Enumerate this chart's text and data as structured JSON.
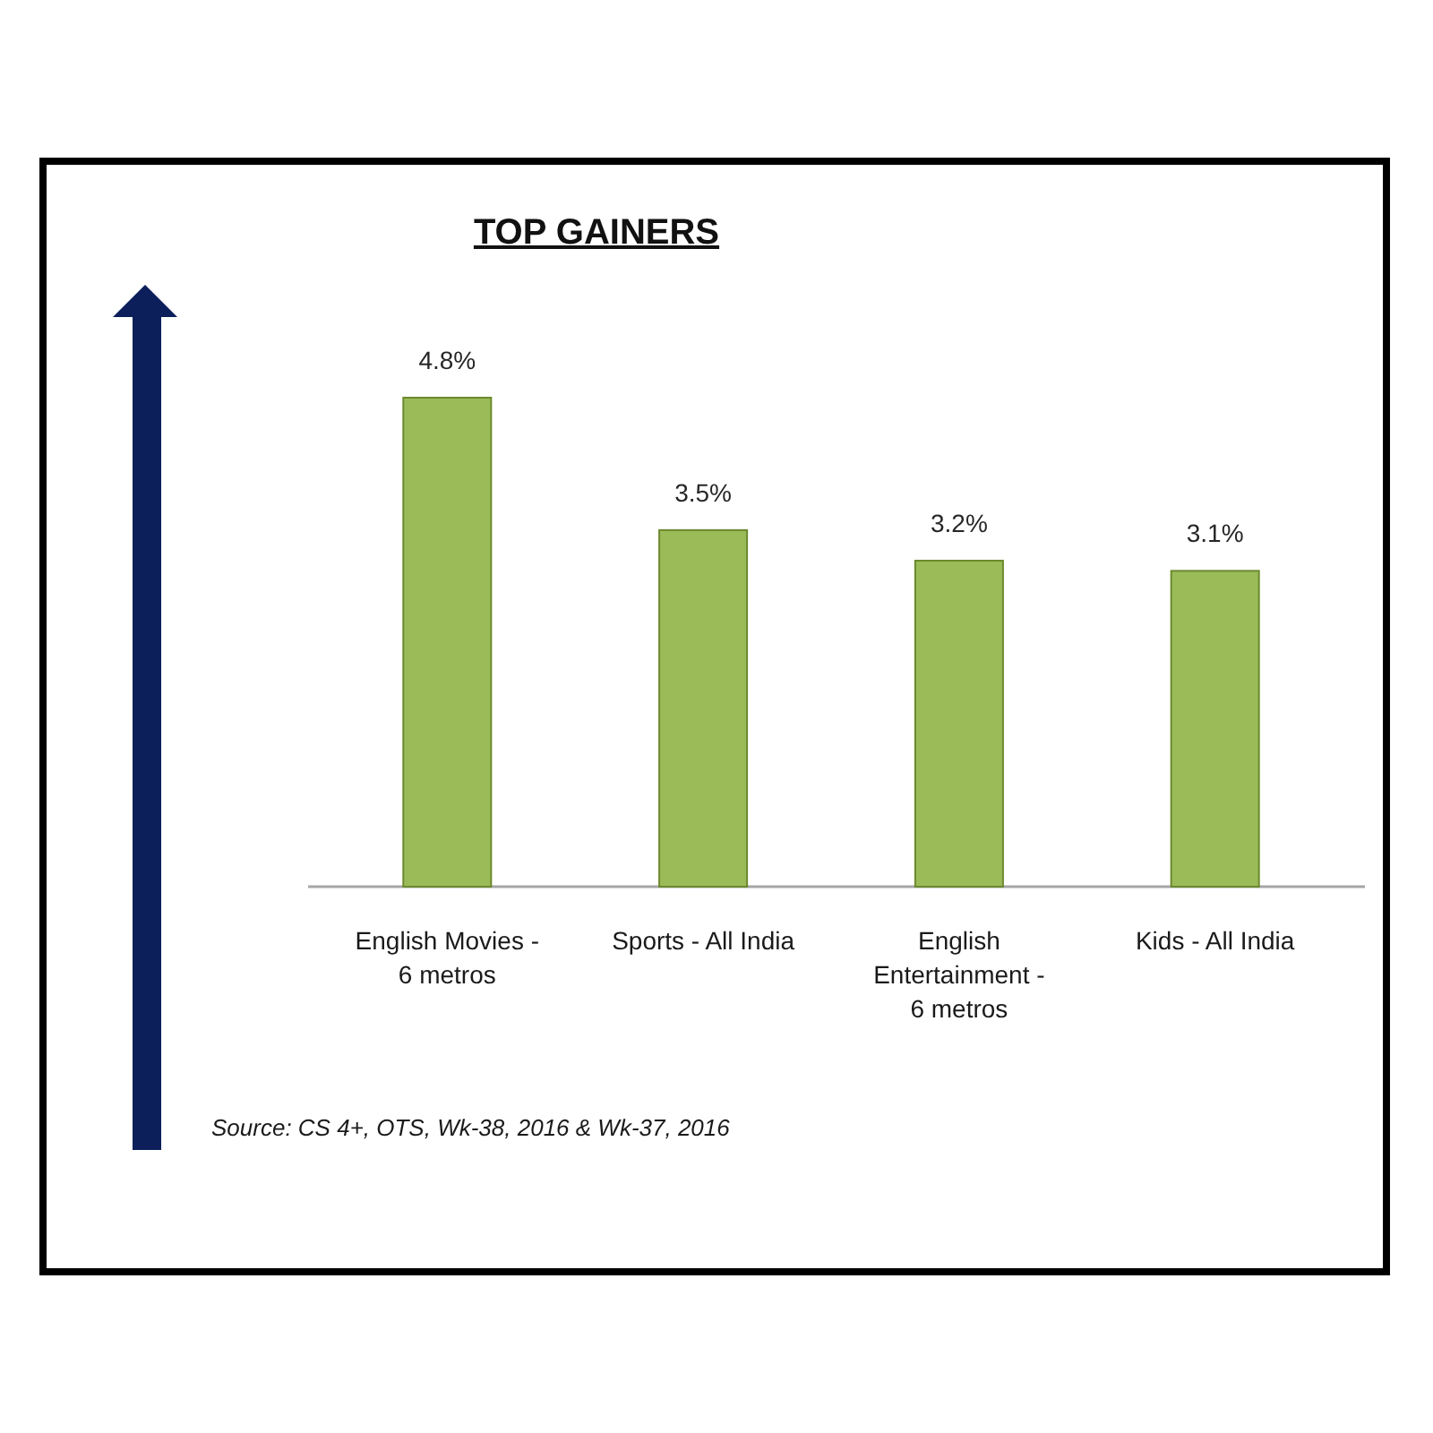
{
  "chart_data": {
    "type": "bar",
    "title": "TOP GAINERS",
    "categories": [
      "English Movies - 6 metros",
      "Sports - All India",
      "English Entertainment - 6 metros",
      "Kids - All India"
    ],
    "values": [
      4.8,
      3.5,
      3.2,
      3.1
    ],
    "value_labels": [
      "4.8%",
      "3.5%",
      "3.2%",
      "3.1%"
    ],
    "color": "#9bbb59",
    "annotations": [
      "Source: CS 4+, OTS, Wk-38, 2016 & Wk-37, 2016"
    ]
  }
}
